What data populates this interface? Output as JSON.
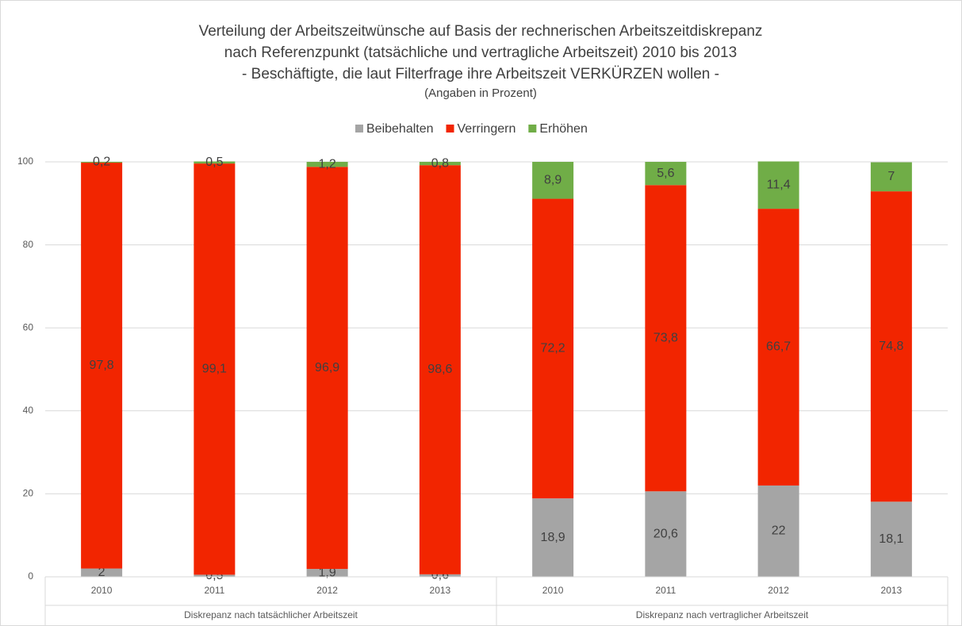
{
  "chart_data": {
    "type": "stacked-bar",
    "title": [
      "Verteilung der Arbeitszeitwünsche auf Basis der rechnerischen Arbeitszeitdiskrepanz",
      "nach Referenzpunkt (tatsächliche und vertragliche Arbeitszeit) 2010 bis 2013",
      "- Beschäftigte, die laut Filterfrage ihre Arbeitszeit VERKÜRZEN wollen -"
    ],
    "subtitle": "(Angaben in Prozent)",
    "groups": [
      {
        "name": "Diskrepanz nach tatsächlicher Arbeitszeit",
        "categories": [
          "2010",
          "2011",
          "2012",
          "2013"
        ]
      },
      {
        "name": "Diskrepanz nach vertraglicher Arbeitszeit",
        "categories": [
          "2010",
          "2011",
          "2012",
          "2013"
        ]
      }
    ],
    "series": [
      {
        "name": "Beibehalten",
        "color": "#a5a5a5",
        "label_color": "#404040",
        "values": [
          2,
          0.5,
          1.9,
          0.6,
          18.9,
          20.6,
          22,
          18.1
        ],
        "value_labels": [
          "2",
          "0,5",
          "1,9",
          "0,6",
          "18,9",
          "20,6",
          "22",
          "18,1"
        ]
      },
      {
        "name": "Verringern",
        "color": "#f22500",
        "label_color": "#ffffff",
        "values": [
          97.8,
          99.1,
          96.9,
          98.6,
          72.2,
          73.8,
          66.7,
          74.8
        ],
        "value_labels": [
          "97,8",
          "99,1",
          "96,9",
          "98,6",
          "72,2",
          "73,8",
          "66,7",
          "74,8"
        ]
      },
      {
        "name": "Erhöhen",
        "color": "#70ad47",
        "label_color": "#404040",
        "values": [
          0.2,
          0.5,
          1.2,
          0.8,
          8.9,
          5.6,
          11.4,
          7
        ],
        "value_labels": [
          "0,2",
          "0,5",
          "1,2",
          "0,8",
          "8,9",
          "5,6",
          "11,4",
          "7"
        ]
      }
    ],
    "ylim": [
      0,
      100
    ],
    "yticks": [
      0,
      20,
      40,
      60,
      80,
      100
    ],
    "grid": true,
    "legend": "top"
  }
}
